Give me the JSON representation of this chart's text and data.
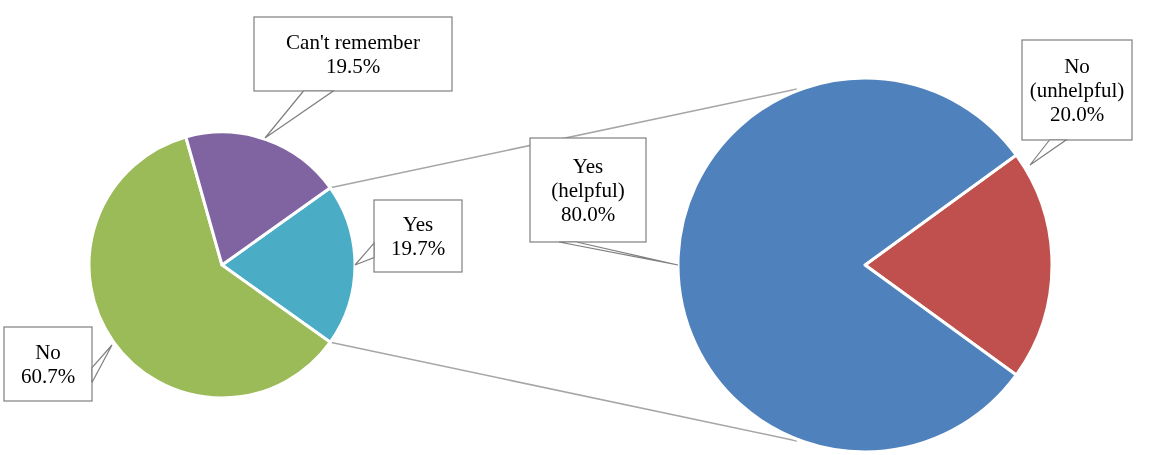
{
  "chart_data": [
    {
      "type": "pie",
      "categories": [
        "Yes",
        "No",
        "Can't remember"
      ],
      "values": [
        19.7,
        60.7,
        19.5
      ],
      "colors": [
        "#4bacc6",
        "#9bbb59",
        "#8064a2"
      ],
      "value_labels": [
        "19.7%",
        "60.7%",
        "19.5%"
      ]
    },
    {
      "type": "pie",
      "categories": [
        "No (unhelpful)",
        "Yes (helpful)"
      ],
      "values": [
        20.0,
        80.0
      ],
      "colors": [
        "#c0504d",
        "#4f81bd"
      ],
      "value_labels": [
        "20.0%",
        "80.0%"
      ]
    }
  ]
}
